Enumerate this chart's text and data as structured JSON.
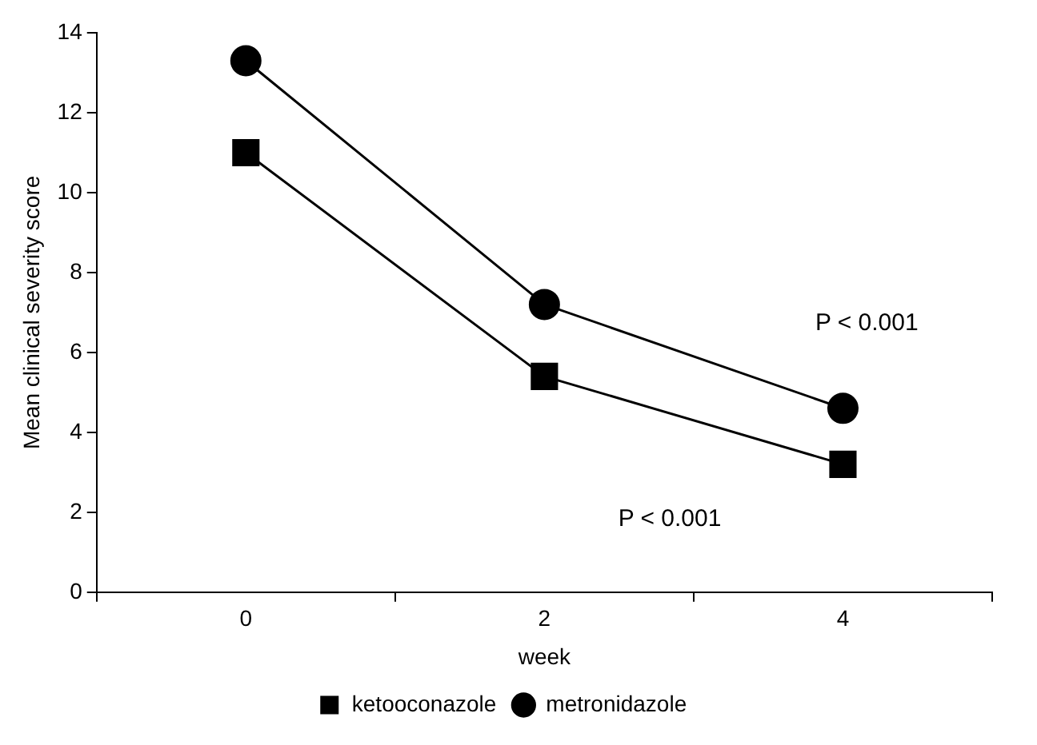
{
  "chart_data": {
    "type": "line",
    "xlabel": "week",
    "ylabel": "Mean clinical severity score",
    "categories": [
      "0",
      "2",
      "4"
    ],
    "series": [
      {
        "name": "ketooconazole",
        "color": "#000000",
        "marker": "square",
        "values": [
          11,
          5.4,
          3.2
        ]
      },
      {
        "name": "metronidazole",
        "color": "#000000",
        "marker": "circle",
        "values": [
          13.3,
          7.2,
          4.6
        ]
      }
    ],
    "ylim": [
      0,
      14
    ],
    "yticks": [
      0,
      2,
      4,
      6,
      8,
      10,
      12,
      14
    ],
    "grid": false,
    "legend": "bottom",
    "line_style": "solid",
    "annotations": [
      "P < 0.001",
      "P < 0.001"
    ]
  }
}
